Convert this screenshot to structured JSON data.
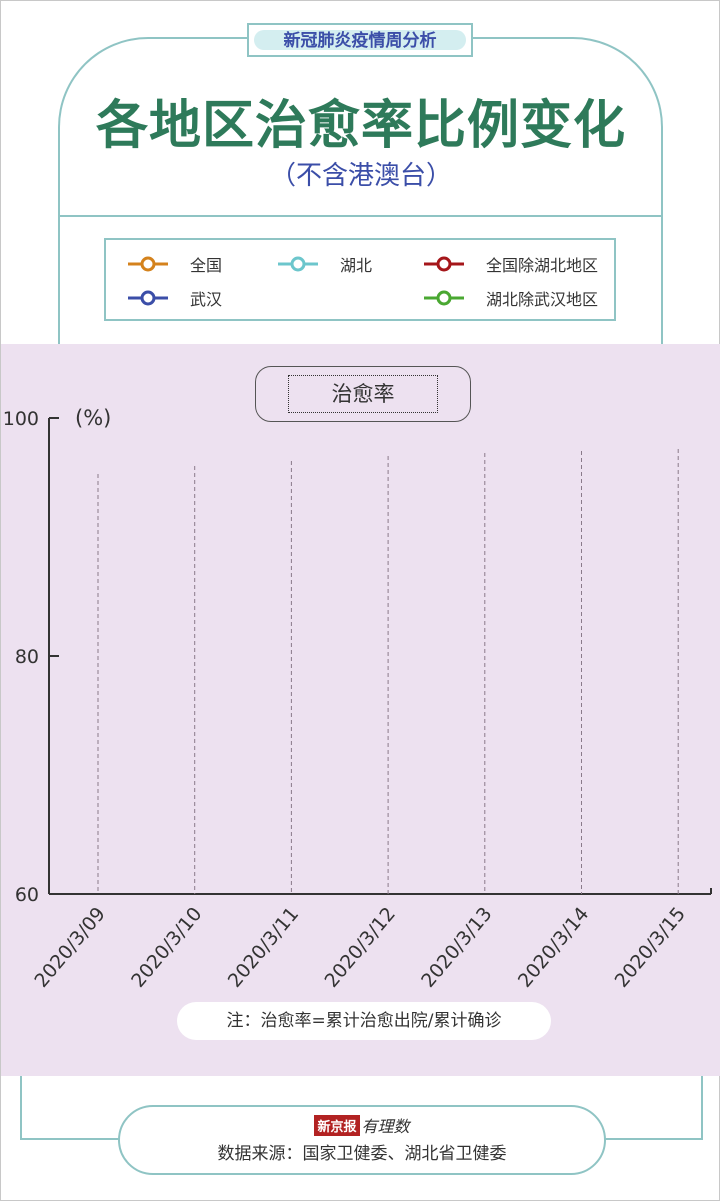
{
  "header": {
    "tag": "新冠肺炎疫情周分析",
    "title": "各地区治愈率比例变化",
    "subtitle": "（不含港澳台）"
  },
  "legend": [
    {
      "label": "全国",
      "color": "#d4821c"
    },
    {
      "label": "湖北",
      "color": "#6cc6cc"
    },
    {
      "label": "全国除湖北地区",
      "color": "#a5161a"
    },
    {
      "label": "武汉",
      "color": "#3b4ea8"
    },
    {
      "label": "湖北除武汉地区",
      "color": "#4aa832"
    }
  ],
  "chart_data": {
    "type": "line",
    "title": "治愈率",
    "ylabel": "(%)",
    "categories": [
      "2020/3/09",
      "2020/3/10",
      "2020/3/11",
      "2020/3/12",
      "2020/3/13",
      "2020/3/14",
      "2020/3/15"
    ],
    "ylim": [
      60,
      100
    ],
    "yticks": [
      "60",
      "80",
      "100"
    ],
    "series": [],
    "grid": "dashed vertical guides per date"
  },
  "note": "注：治愈率=累计治愈出院/累计确诊",
  "footer": {
    "logo_brand": "新京报",
    "logo_script": "有理数",
    "source": "数据来源：国家卫健委、湖北省卫健委"
  }
}
